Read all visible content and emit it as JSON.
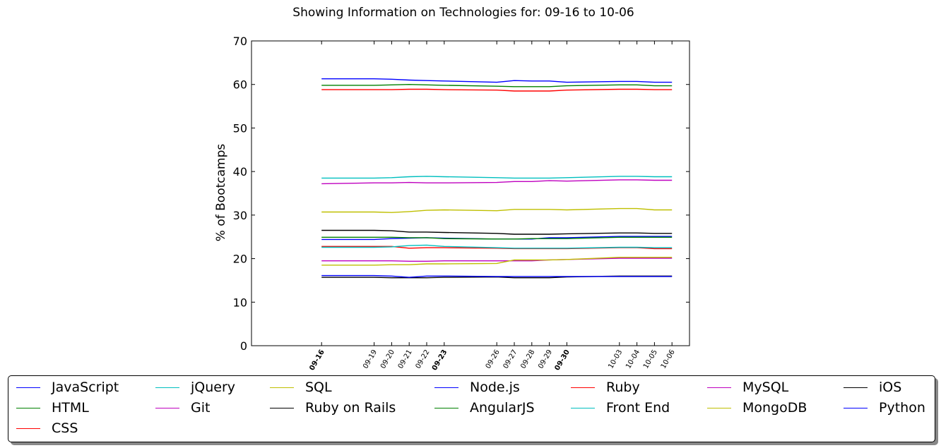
{
  "chart_data": {
    "type": "line",
    "title": "Showing Information on Technologies for: 09-16 to 10-06",
    "xlabel": "",
    "ylabel": "% of Bootcamps",
    "ylim": [
      0,
      70
    ],
    "yticks": [
      0,
      10,
      20,
      30,
      40,
      50,
      60,
      70
    ],
    "xlim": [
      "09-12",
      "10-07"
    ],
    "x": [
      "09-16",
      "09-19",
      "09-20",
      "09-21",
      "09-22",
      "09-23",
      "09-26",
      "09-27",
      "09-28",
      "09-29",
      "09-30",
      "10-03",
      "10-04",
      "10-05",
      "10-06"
    ],
    "grid": false,
    "legend_position": "bottom",
    "series": [
      {
        "name": "JavaScript",
        "color": "#0000ff",
        "values": [
          61.3,
          61.3,
          61.2,
          61.0,
          60.9,
          60.8,
          60.5,
          60.9,
          60.8,
          60.8,
          60.5,
          60.7,
          60.7,
          60.5,
          60.5
        ]
      },
      {
        "name": "HTML",
        "color": "#008000",
        "values": [
          59.8,
          59.8,
          59.9,
          60.0,
          59.9,
          59.8,
          59.6,
          59.5,
          59.5,
          59.5,
          59.7,
          59.9,
          59.9,
          59.7,
          59.7
        ]
      },
      {
        "name": "CSS",
        "color": "#ff0000",
        "values": [
          58.8,
          58.8,
          58.8,
          58.9,
          58.9,
          58.8,
          58.7,
          58.5,
          58.5,
          58.5,
          58.7,
          58.9,
          58.9,
          58.8,
          58.8
        ]
      },
      {
        "name": "jQuery",
        "color": "#00bfbf",
        "values": [
          38.5,
          38.5,
          38.6,
          38.8,
          38.9,
          38.8,
          38.6,
          38.5,
          38.5,
          38.5,
          38.6,
          38.9,
          38.9,
          38.8,
          38.8
        ]
      },
      {
        "name": "Git",
        "color": "#bf00bf",
        "values": [
          37.2,
          37.4,
          37.4,
          37.5,
          37.4,
          37.4,
          37.5,
          37.7,
          37.7,
          37.9,
          37.8,
          38.1,
          38.1,
          38.0,
          38.0
        ]
      },
      {
        "name": "SQL",
        "color": "#bfbf00",
        "values": [
          30.7,
          30.7,
          30.6,
          30.8,
          31.1,
          31.2,
          31.0,
          31.3,
          31.3,
          31.3,
          31.2,
          31.5,
          31.5,
          31.2,
          31.2
        ]
      },
      {
        "name": "Ruby on Rails",
        "color": "#000000",
        "values": [
          26.5,
          26.5,
          26.4,
          26.1,
          26.1,
          26.0,
          25.8,
          25.6,
          25.6,
          25.6,
          25.7,
          25.9,
          25.9,
          25.8,
          25.8
        ]
      },
      {
        "name": "Node.js",
        "color": "#0000ff",
        "values": [
          24.4,
          24.4,
          24.6,
          24.7,
          24.8,
          24.7,
          24.5,
          24.5,
          24.5,
          24.8,
          24.8,
          25.1,
          25.1,
          25.1,
          25.1
        ]
      },
      {
        "name": "AngularJS",
        "color": "#008000",
        "values": [
          24.9,
          24.9,
          24.9,
          24.8,
          24.8,
          24.6,
          24.5,
          24.5,
          24.6,
          24.6,
          24.6,
          24.9,
          24.9,
          24.9,
          24.9
        ]
      },
      {
        "name": "Ruby",
        "color": "#ff0000",
        "values": [
          22.8,
          22.8,
          22.8,
          22.4,
          22.5,
          22.5,
          22.4,
          22.3,
          22.3,
          22.3,
          22.3,
          22.5,
          22.5,
          22.3,
          22.3
        ]
      },
      {
        "name": "Front End",
        "color": "#00bfbf",
        "values": [
          22.6,
          22.6,
          22.7,
          23.0,
          23.1,
          22.8,
          22.5,
          22.4,
          22.4,
          22.4,
          22.4,
          22.6,
          22.6,
          22.5,
          22.5
        ]
      },
      {
        "name": "MySQL",
        "color": "#bf00bf",
        "values": [
          19.5,
          19.5,
          19.5,
          19.4,
          19.4,
          19.5,
          19.5,
          19.5,
          19.5,
          19.7,
          19.8,
          20.1,
          20.1,
          20.1,
          20.1
        ]
      },
      {
        "name": "MongoDB",
        "color": "#bfbf00",
        "values": [
          18.5,
          18.5,
          18.6,
          18.6,
          18.8,
          18.8,
          18.9,
          19.7,
          19.7,
          19.7,
          19.8,
          20.3,
          20.3,
          20.3,
          20.3
        ]
      },
      {
        "name": "iOS",
        "color": "#000000",
        "values": [
          15.7,
          15.7,
          15.6,
          15.6,
          15.6,
          15.7,
          15.8,
          15.6,
          15.6,
          15.6,
          15.8,
          16.0,
          16.0,
          16.0,
          16.0
        ]
      },
      {
        "name": "Python",
        "color": "#0000ff",
        "values": [
          16.1,
          16.1,
          16.0,
          15.7,
          16.0,
          16.0,
          15.9,
          15.9,
          15.9,
          15.9,
          15.9,
          15.9,
          15.9,
          15.9,
          15.9
        ]
      }
    ]
  }
}
